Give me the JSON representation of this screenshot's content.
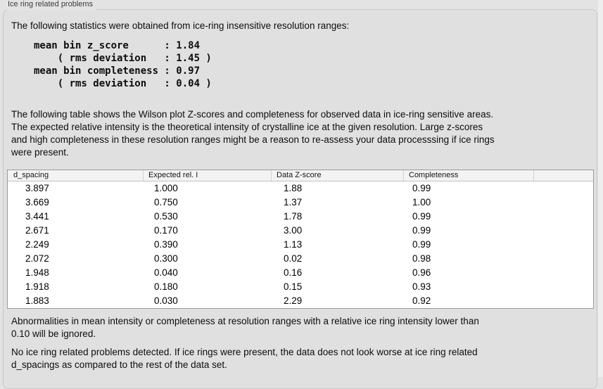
{
  "panel": {
    "title": "Ice ring related problems"
  },
  "intro": "The following statistics were obtained from ice-ring insensitive resolution ranges:",
  "stats_block": "mean bin z_score      : 1.84\n    ( rms deviation   : 1.45 )\nmean bin completeness : 0.97\n    ( rms deviation   : 0.04 )",
  "stats": {
    "mean_bin_z_score": "1.84",
    "z_score_rms_deviation": "1.45",
    "mean_bin_completeness": "0.97",
    "completeness_rms_deviation": "0.04"
  },
  "table_intro": "The following table shows the Wilson plot Z-scores and completeness for observed data in ice-ring sensitive areas.\nThe expected relative intensity is the theoretical intensity of crystalline ice at the given resolution. Large z-scores\nand high completeness in these resolution ranges might be a reason to re-assess your data processsing if ice rings\nwere present.",
  "table": {
    "columns": [
      "d_spacing",
      "Expected rel. I",
      "Data Z-score",
      "Completeness",
      ""
    ],
    "rows": [
      [
        "3.897",
        "1.000",
        "1.88",
        "0.99"
      ],
      [
        "3.669",
        "0.750",
        "1.37",
        "1.00"
      ],
      [
        "3.441",
        "0.530",
        "1.78",
        "0.99"
      ],
      [
        "2.671",
        "0.170",
        "3.00",
        "0.99"
      ],
      [
        "2.249",
        "0.390",
        "1.13",
        "0.99"
      ],
      [
        "2.072",
        "0.300",
        "0.02",
        "0.98"
      ],
      [
        "1.948",
        "0.040",
        "0.16",
        "0.96"
      ],
      [
        "1.918",
        "0.180",
        "0.15",
        "0.93"
      ],
      [
        "1.883",
        "0.030",
        "2.29",
        "0.92"
      ]
    ]
  },
  "footnote": "Abnormalities in mean intensity or completeness at resolution ranges with a relative ice ring intensity lower than\n0.10 will be ignored.",
  "conclusion": "No ice ring related problems detected. If ice rings were present, the data does not look worse at ice ring related\nd_spacings as compared to the rest of the data set.",
  "colors": {
    "background": "#e3e3e3",
    "group_box_background": "#e0e0e0",
    "group_box_border": "#c7c7c7",
    "table_border": "#9a9a9a",
    "table_header_background": "#f3f3f3"
  }
}
